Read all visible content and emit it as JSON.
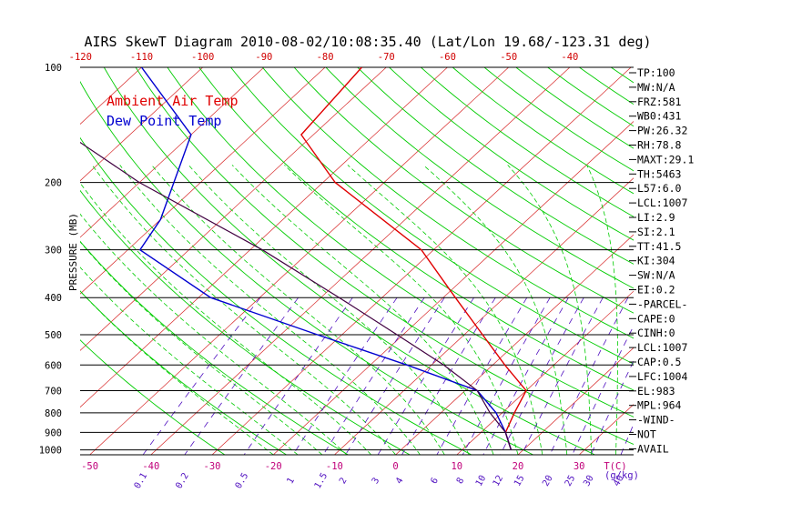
{
  "chart_data": {
    "type": "line",
    "title": "AIRS SkewT Diagram 2010-08-02/10:08:35.40 (Lat/Lon 19.68/-123.31 deg)",
    "ylabel": "PRESSURE (MB)",
    "y_scale": "log",
    "ylim": [
      1030,
      100
    ],
    "pressure_ticks": [
      100,
      200,
      300,
      400,
      500,
      600,
      700,
      800,
      900,
      1000
    ],
    "bottom_temp_ticks": [
      -50,
      -40,
      -30,
      -20,
      -10,
      0,
      10,
      20,
      30
    ],
    "bottom_temp_unit": "T(C)",
    "top_temp_ticks": [
      -120,
      -110,
      -100,
      -90,
      -80,
      -70,
      -60,
      -50,
      -40
    ],
    "mixing_ratio_labels": [
      "0.1",
      "0.2",
      "0.5",
      "1",
      "1.5",
      "2",
      "3",
      "4",
      "6",
      "8",
      "10",
      "12",
      "15",
      "20",
      "25",
      "30",
      "40"
    ],
    "mixing_ratio_unit": "(g/kg)",
    "series": [
      {
        "name": "Ambient Air Temp",
        "color": "#e00000",
        "points": [
          [
            100,
            -74
          ],
          [
            150,
            -72
          ],
          [
            200,
            -58
          ],
          [
            300,
            -32
          ],
          [
            400,
            -18
          ],
          [
            500,
            -7
          ],
          [
            600,
            2
          ],
          [
            700,
            10
          ],
          [
            800,
            12
          ],
          [
            900,
            14
          ],
          [
            1000,
            18
          ]
        ]
      },
      {
        "name": "Dew Point Temp",
        "color": "#0000d0",
        "points": [
          [
            100,
            -110
          ],
          [
            150,
            -90
          ],
          [
            250,
            -80
          ],
          [
            300,
            -78
          ],
          [
            400,
            -58
          ],
          [
            500,
            -34
          ],
          [
            600,
            -14
          ],
          [
            700,
            2
          ],
          [
            800,
            9
          ],
          [
            900,
            14
          ],
          [
            1000,
            18
          ]
        ]
      },
      {
        "name": "",
        "color": "#400040",
        "points": [
          [
            100,
            -137
          ],
          [
            150,
            -110
          ],
          [
            200,
            -90
          ],
          [
            300,
            -58
          ],
          [
            400,
            -37
          ],
          [
            500,
            -21
          ],
          [
            600,
            -8
          ],
          [
            700,
            2
          ],
          [
            800,
            8
          ],
          [
            900,
            14
          ],
          [
            1000,
            18
          ]
        ]
      }
    ]
  },
  "indices": [
    "TP:100",
    "MW:N/A",
    "FRZ:581",
    "WB0:431",
    "PW:26.32",
    "RH:78.8",
    "MAXT:29.1",
    "TH:5463",
    "L57:6.0",
    "LCL:1007",
    "LI:2.9",
    "SI:2.1",
    "TT:41.5",
    "KI:304",
    "SW:N/A",
    "EI:0.2",
    "-PARCEL-",
    "CAPE:0",
    "CINH:0",
    "LCL:1007",
    "CAP:0.5",
    "LFC:1004",
    "EL:983",
    "MPL:964",
    "-WIND-",
    "NOT",
    "AVAIL"
  ],
  "colors": {
    "temp": "#e00000",
    "dew": "#0000d0",
    "parcel": "#400040",
    "dry_adiabat": "#d00000",
    "moist_adiabat": "#00cc00",
    "mixing_ratio": "#5010c0",
    "isobar": "#000000"
  }
}
